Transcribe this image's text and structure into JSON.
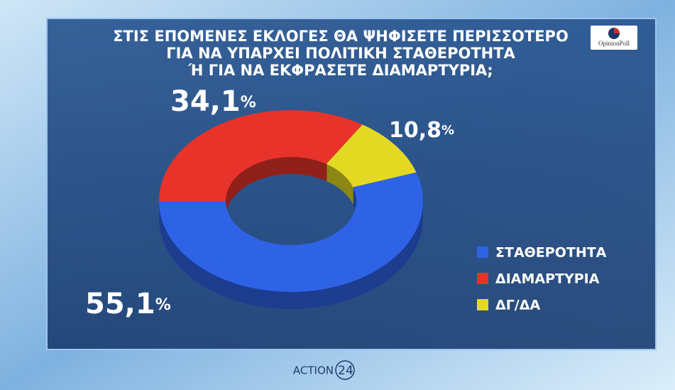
{
  "chart_data": {
    "type": "donut",
    "title": [
      "ΣΤΙΣ ΕΠΟΜΕΝΕΣ ΕΚΛΟΓΕΣ ΘΑ ΨΗΦΙΣΕΤΕ ΠΕΡΙΣΣΟΤΕΡΟ",
      "ΓΙΑ ΝΑ ΥΠΑΡΧΕΙ ΠΟΛΙΤΙΚΗ ΣΤΑΘΕΡΟΤΗΤΑ",
      "Ή ΓΙΑ ΝΑ ΕΚΦΡΑΣΕΤΕ ΔΙΑΜΑΡΤΥΡΙΑ;"
    ],
    "categories": [
      "ΣΤΑΘΕΡΟΤΗΤΑ",
      "ΔΙΑΜΑΡΤΥΡΙΑ",
      "ΔΓ/ΔΑ"
    ],
    "values": [
      55.1,
      34.1,
      10.8
    ],
    "value_labels": [
      "55,1%",
      "34,1%",
      "10,8%"
    ],
    "colors": [
      "#2f63e6",
      "#e8332a",
      "#e3d923"
    ],
    "legend": "right"
  },
  "logo": "OpinionPoll",
  "footer": {
    "brand": "ACTION",
    "number": "24"
  }
}
